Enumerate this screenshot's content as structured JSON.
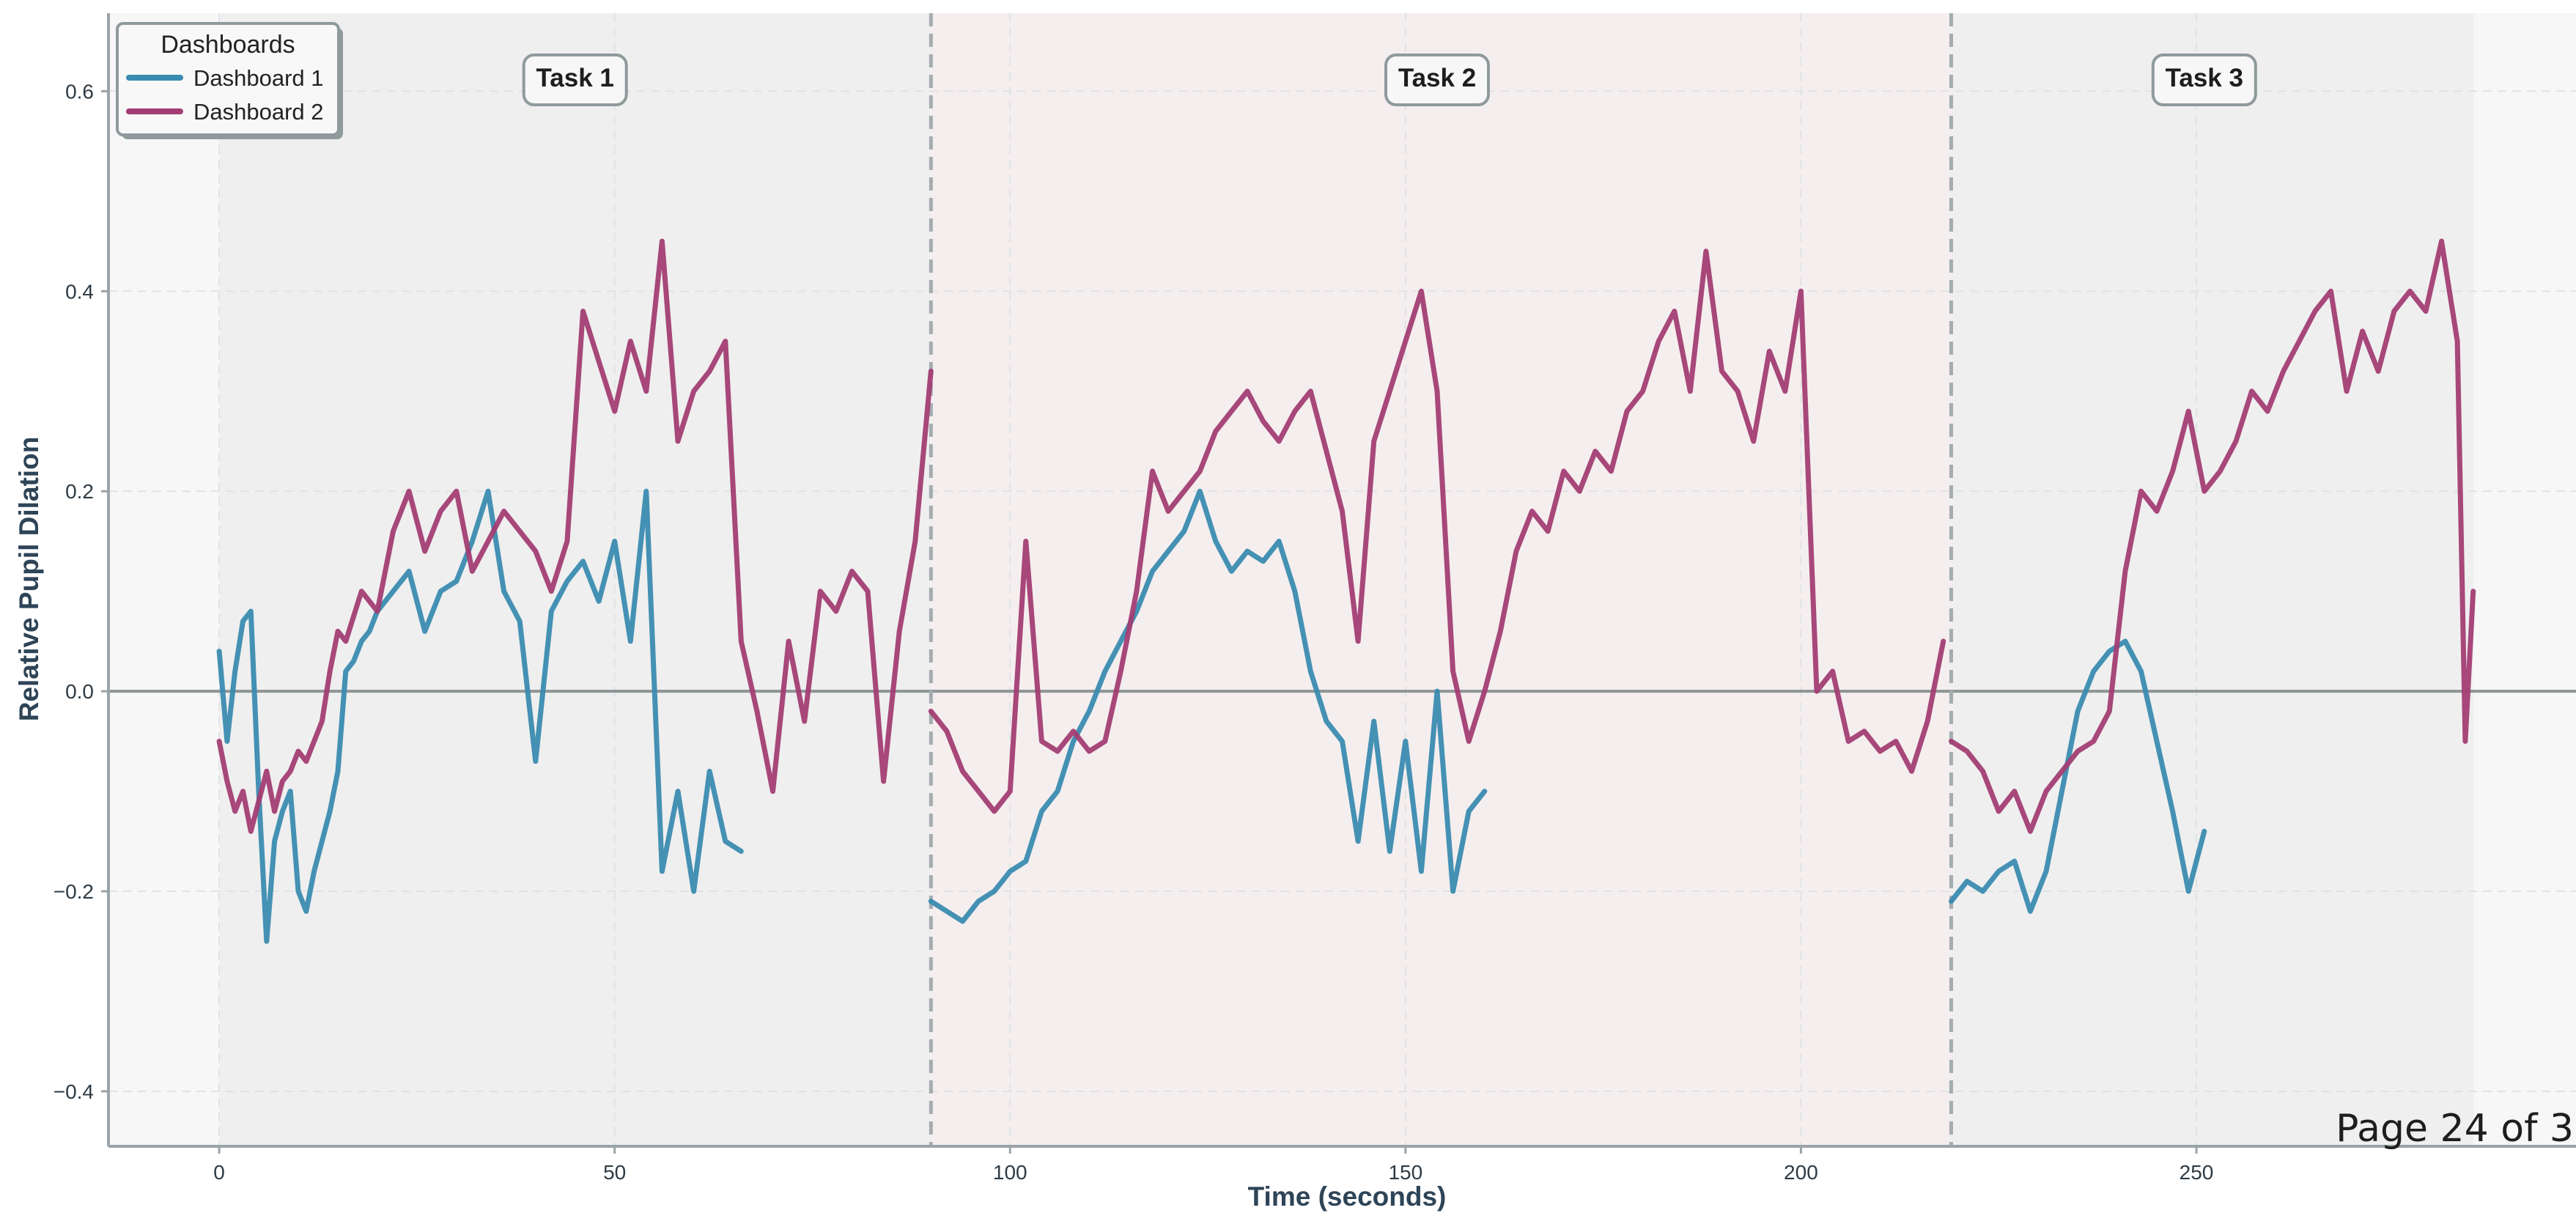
{
  "chart_data": {
    "type": "line",
    "xlabel": "Time (seconds)",
    "ylabel": "Relative Pupil Dilation",
    "xlim": [
      -14,
      298
    ],
    "ylim": [
      -0.455,
      0.678
    ],
    "x_ticks": [
      0,
      50,
      100,
      150,
      200,
      250
    ],
    "x_tick_labels": [
      "0",
      "50",
      "100",
      "150",
      "200",
      "250"
    ],
    "y_ticks": [
      -0.4,
      -0.2,
      0.0,
      0.2,
      0.4,
      0.6
    ],
    "y_tick_labels": [
      "−0.4",
      "−0.2",
      "0.0",
      "0.2",
      "0.4",
      "0.6"
    ],
    "grid": true,
    "legend_title": "Dashboards",
    "legend_position": "top-left",
    "tasks": [
      {
        "label": "Task 1",
        "start": 0,
        "end": 90,
        "label_x": 45,
        "color": "#efefef"
      },
      {
        "label": "Task 2",
        "start": 90,
        "end": 219,
        "label_x": 154,
        "color": "#f5eeee"
      },
      {
        "label": "Task 3",
        "start": 219,
        "end": 285,
        "label_x": 251,
        "color": "#efefef"
      }
    ],
    "task_boundaries": [
      90,
      219
    ],
    "series": [
      {
        "name": "Dashboard 1",
        "color": "#3a8bb0",
        "segments": [
          {
            "x": [
              0,
              1,
              2,
              3,
              4,
              5,
              6,
              7,
              8,
              9,
              10,
              11,
              12,
              13,
              14,
              15,
              16,
              17,
              18,
              19,
              20,
              22,
              24,
              26,
              28,
              30,
              32,
              34,
              36,
              38,
              40,
              42,
              44,
              46,
              48,
              50,
              52,
              54,
              56,
              58,
              60,
              62,
              64,
              66
            ],
            "y": [
              0.04,
              -0.05,
              0.02,
              0.07,
              0.08,
              -0.1,
              -0.25,
              -0.15,
              -0.12,
              -0.1,
              -0.2,
              -0.22,
              -0.18,
              -0.15,
              -0.12,
              -0.08,
              0.02,
              0.03,
              0.05,
              0.06,
              0.08,
              0.1,
              0.12,
              0.06,
              0.1,
              0.11,
              0.15,
              0.2,
              0.1,
              0.07,
              -0.07,
              0.08,
              0.11,
              0.13,
              0.09,
              0.15,
              0.05,
              0.2,
              -0.18,
              -0.1,
              -0.2,
              -0.08,
              -0.15,
              -0.16
            ]
          },
          {
            "x": [
              90,
              92,
              94,
              96,
              98,
              100,
              102,
              104,
              106,
              108,
              110,
              112,
              114,
              116,
              118,
              120,
              122,
              124,
              126,
              128,
              130,
              132,
              134,
              136,
              138,
              140,
              142,
              144,
              146,
              148,
              150,
              152,
              154,
              156,
              158,
              160
            ],
            "y": [
              -0.21,
              -0.22,
              -0.23,
              -0.21,
              -0.2,
              -0.18,
              -0.17,
              -0.12,
              -0.1,
              -0.05,
              -0.02,
              0.02,
              0.05,
              0.08,
              0.12,
              0.14,
              0.16,
              0.2,
              0.15,
              0.12,
              0.14,
              0.13,
              0.15,
              0.1,
              0.02,
              -0.03,
              -0.05,
              -0.15,
              -0.03,
              -0.16,
              -0.05,
              -0.18,
              0.0,
              -0.2,
              -0.12,
              -0.1
            ]
          },
          {
            "x": [
              219,
              221,
              223,
              225,
              227,
              229,
              231,
              233,
              235,
              237,
              239,
              241,
              243,
              245,
              247,
              249,
              251
            ],
            "y": [
              -0.21,
              -0.19,
              -0.2,
              -0.18,
              -0.17,
              -0.22,
              -0.18,
              -0.1,
              -0.02,
              0.02,
              0.04,
              0.05,
              0.02,
              -0.05,
              -0.12,
              -0.2,
              -0.14
            ]
          }
        ]
      },
      {
        "name": "Dashboard 2",
        "color": "#a23d73",
        "segments": [
          {
            "x": [
              0,
              1,
              2,
              3,
              4,
              5,
              6,
              7,
              8,
              9,
              10,
              11,
              12,
              13,
              14,
              15,
              16,
              18,
              20,
              22,
              24,
              26,
              28,
              30,
              32,
              34,
              36,
              38,
              40,
              42,
              44,
              46,
              48,
              50,
              52,
              54,
              56,
              58,
              60,
              62,
              64,
              66,
              68,
              70,
              72,
              74,
              76,
              78,
              80,
              82,
              84,
              86,
              88,
              90
            ],
            "y": [
              -0.05,
              -0.09,
              -0.12,
              -0.1,
              -0.14,
              -0.11,
              -0.08,
              -0.12,
              -0.09,
              -0.08,
              -0.06,
              -0.07,
              -0.05,
              -0.03,
              0.02,
              0.06,
              0.05,
              0.1,
              0.08,
              0.16,
              0.2,
              0.14,
              0.18,
              0.2,
              0.12,
              0.15,
              0.18,
              0.16,
              0.14,
              0.1,
              0.15,
              0.38,
              0.33,
              0.28,
              0.35,
              0.3,
              0.45,
              0.25,
              0.3,
              0.32,
              0.35,
              0.05,
              -0.02,
              -0.1,
              0.05,
              -0.03,
              0.1,
              0.08,
              0.12,
              0.1,
              -0.09,
              0.06,
              0.15,
              0.32
            ]
          },
          {
            "x": [
              90,
              92,
              94,
              96,
              98,
              100,
              102,
              104,
              106,
              108,
              110,
              112,
              114,
              116,
              118,
              120,
              122,
              124,
              126,
              128,
              130,
              132,
              134,
              136,
              138,
              140,
              142,
              144,
              146,
              148,
              150,
              152,
              154,
              156,
              158,
              160,
              162,
              164,
              166,
              168,
              170,
              172,
              174,
              176,
              178,
              180,
              182,
              184,
              186,
              188,
              190,
              192,
              194,
              196,
              198,
              200,
              202,
              204,
              206,
              208,
              210,
              212,
              214,
              216,
              218
            ],
            "y": [
              -0.02,
              -0.04,
              -0.08,
              -0.1,
              -0.12,
              -0.1,
              0.15,
              -0.05,
              -0.06,
              -0.04,
              -0.06,
              -0.05,
              0.02,
              0.1,
              0.22,
              0.18,
              0.2,
              0.22,
              0.26,
              0.28,
              0.3,
              0.27,
              0.25,
              0.28,
              0.3,
              0.24,
              0.18,
              0.05,
              0.25,
              0.3,
              0.35,
              0.4,
              0.3,
              0.02,
              -0.05,
              0.0,
              0.06,
              0.14,
              0.18,
              0.16,
              0.22,
              0.2,
              0.24,
              0.22,
              0.28,
              0.3,
              0.35,
              0.38,
              0.3,
              0.44,
              0.32,
              0.3,
              0.25,
              0.34,
              0.3,
              0.4,
              0.0,
              0.02,
              -0.05,
              -0.04,
              -0.06,
              -0.05,
              -0.08,
              -0.03,
              0.05
            ]
          },
          {
            "x": [
              219,
              221,
              223,
              225,
              227,
              229,
              231,
              233,
              235,
              237,
              239,
              241,
              243,
              245,
              247,
              249,
              251,
              253,
              255,
              257,
              259,
              261,
              263,
              265,
              267,
              269,
              271,
              273,
              275,
              277,
              279,
              281,
              283,
              284,
              285
            ],
            "y": [
              -0.05,
              -0.06,
              -0.08,
              -0.12,
              -0.1,
              -0.14,
              -0.1,
              -0.08,
              -0.06,
              -0.05,
              -0.02,
              0.12,
              0.2,
              0.18,
              0.22,
              0.28,
              0.2,
              0.22,
              0.25,
              0.3,
              0.28,
              0.32,
              0.35,
              0.38,
              0.4,
              0.3,
              0.36,
              0.32,
              0.38,
              0.4,
              0.38,
              0.45,
              0.35,
              -0.05,
              0.1
            ]
          }
        ]
      }
    ]
  },
  "page_label": "Page 24 of 3"
}
